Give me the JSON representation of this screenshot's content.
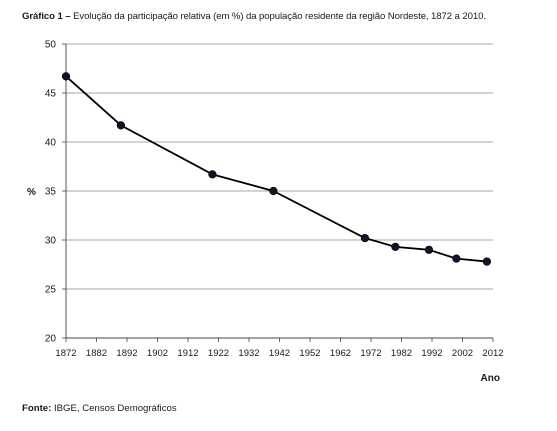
{
  "title": {
    "prefix": "Gráfico 1 –",
    "text": "Evolução da participação relativa (em %) da população residente da região Nordeste, 1872 a 2010."
  },
  "source": {
    "label": "Fonte:",
    "text": "IBGE, Censos Demográficos"
  },
  "chart_data": {
    "type": "line",
    "title": "Evolução da participação relativa (em %) da população residente da região Nordeste, 1872 a 2010.",
    "xlabel": "Ano",
    "ylabel": "%",
    "x_tick_labels": [
      "1872",
      "1882",
      "1892",
      "1902",
      "1912",
      "1922",
      "1932",
      "1942",
      "1952",
      "1962",
      "1972",
      "1982",
      "1992",
      "2002",
      "2012"
    ],
    "y_tick_labels": [
      "20",
      "25",
      "30",
      "35",
      "40",
      "45",
      "50"
    ],
    "xlim": [
      1872,
      2012
    ],
    "ylim": [
      20,
      50
    ],
    "grid": true,
    "legend": "none",
    "line_color": "#000000",
    "series": [
      {
        "x": [
          1872,
          1890,
          1920,
          1940,
          1970,
          1980,
          1991,
          2000,
          2010
        ],
        "y": [
          46.7,
          41.7,
          36.7,
          35.0,
          30.2,
          29.3,
          29.0,
          28.1,
          27.8
        ]
      }
    ]
  }
}
